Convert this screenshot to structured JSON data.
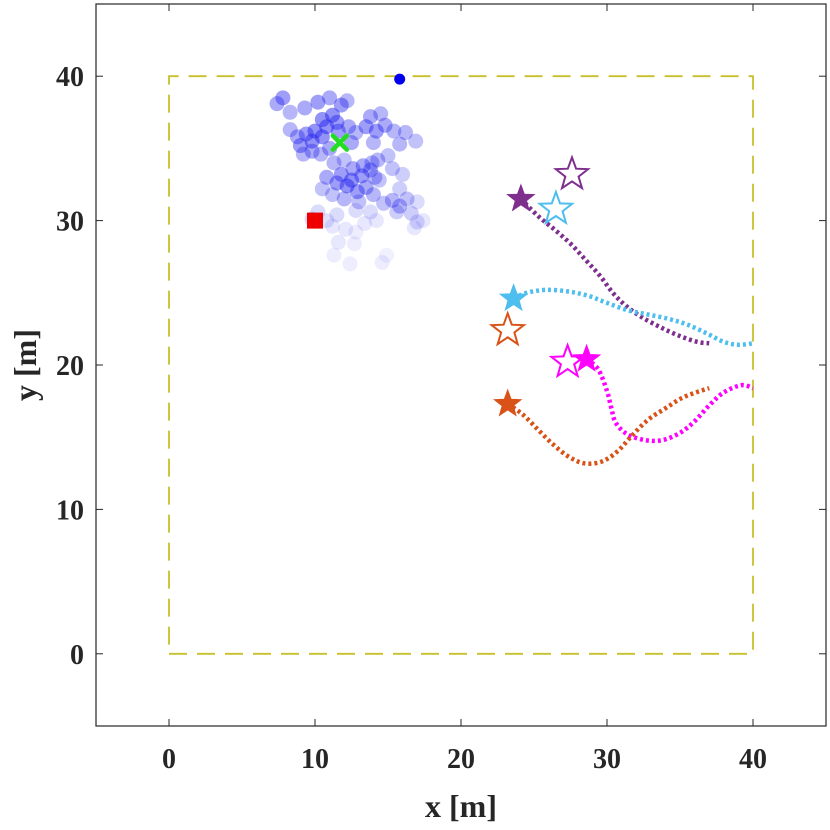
{
  "chart_data": {
    "type": "scatter",
    "xlabel": "x [m]",
    "ylabel": "y [m]",
    "xlim": [
      -5,
      45
    ],
    "ylim": [
      -5,
      45
    ],
    "xticks": [
      0,
      10,
      20,
      30,
      40
    ],
    "yticks": [
      0,
      10,
      20,
      30,
      40
    ],
    "xtick_labels": [
      "0",
      "10",
      "20",
      "30",
      "40"
    ],
    "ytick_labels": [
      "0",
      "10",
      "20",
      "30",
      "40"
    ],
    "grid": false,
    "boundary": {
      "x": [
        0,
        40,
        40,
        0,
        0
      ],
      "y": [
        0,
        0,
        40,
        40,
        0
      ],
      "color": "#c8c02a",
      "style": "dashed"
    },
    "particles": {
      "color": "#2222ee",
      "points": [
        [
          7.8,
          38.5,
          0.8
        ],
        [
          7.4,
          38.1,
          0.7
        ],
        [
          8.3,
          37.5,
          0.6
        ],
        [
          9.3,
          37.8,
          0.7
        ],
        [
          10.2,
          38.2,
          0.8
        ],
        [
          11.0,
          38.5,
          0.7
        ],
        [
          11.8,
          38.0,
          0.8
        ],
        [
          12.2,
          38.3,
          0.6
        ],
        [
          10.5,
          37.0,
          0.9
        ],
        [
          11.2,
          37.3,
          0.9
        ],
        [
          10.8,
          36.5,
          0.9
        ],
        [
          11.5,
          36.8,
          0.8
        ],
        [
          10.0,
          36.2,
          0.9
        ],
        [
          9.4,
          36.0,
          0.8
        ],
        [
          8.8,
          35.8,
          0.7
        ],
        [
          8.3,
          36.3,
          0.6
        ],
        [
          9.0,
          35.2,
          0.8
        ],
        [
          9.8,
          35.5,
          0.9
        ],
        [
          10.5,
          35.8,
          0.9
        ],
        [
          11.6,
          36.2,
          0.8
        ],
        [
          12.3,
          36.5,
          0.7
        ],
        [
          12.8,
          36.1,
          0.6
        ],
        [
          12.5,
          35.4,
          0.7
        ],
        [
          9.2,
          34.6,
          0.6
        ],
        [
          9.8,
          34.8,
          0.7
        ],
        [
          10.4,
          34.6,
          0.6
        ],
        [
          11.0,
          35.0,
          0.7
        ],
        [
          13.8,
          37.2,
          0.7
        ],
        [
          14.5,
          37.4,
          0.6
        ],
        [
          13.5,
          36.5,
          0.8
        ],
        [
          14.2,
          36.2,
          0.8
        ],
        [
          14.8,
          36.6,
          0.7
        ],
        [
          15.4,
          36.2,
          0.6
        ],
        [
          16.2,
          36.1,
          0.6
        ],
        [
          15.8,
          35.3,
          0.6
        ],
        [
          16.9,
          35.5,
          0.5
        ],
        [
          14.0,
          35.4,
          0.6
        ],
        [
          12.0,
          34.2,
          0.5
        ],
        [
          11.3,
          34.0,
          0.6
        ],
        [
          12.6,
          33.6,
          0.7
        ],
        [
          13.3,
          33.8,
          0.7
        ],
        [
          13.9,
          34.0,
          0.6
        ],
        [
          11.8,
          33.2,
          0.8
        ],
        [
          12.5,
          32.8,
          0.9
        ],
        [
          13.2,
          33.1,
          0.8
        ],
        [
          13.8,
          33.5,
          0.7
        ],
        [
          14.3,
          34.2,
          0.6
        ],
        [
          15.0,
          34.5,
          0.5
        ],
        [
          10.8,
          33.0,
          0.7
        ],
        [
          11.5,
          32.6,
          0.8
        ],
        [
          12.2,
          32.4,
          0.9
        ],
        [
          12.9,
          32.0,
          0.8
        ],
        [
          13.5,
          32.3,
          0.7
        ],
        [
          14.0,
          31.8,
          0.6
        ],
        [
          12.0,
          31.5,
          0.6
        ],
        [
          11.2,
          31.8,
          0.5
        ],
        [
          10.5,
          32.2,
          0.5
        ],
        [
          13.0,
          31.3,
          0.5
        ],
        [
          15.3,
          31.4,
          0.6
        ],
        [
          15.8,
          31.0,
          0.6
        ],
        [
          16.3,
          31.5,
          0.5
        ],
        [
          15.6,
          30.6,
          0.4
        ],
        [
          16.6,
          30.5,
          0.4
        ],
        [
          17.0,
          31.3,
          0.3
        ],
        [
          17.0,
          29.9,
          0.3
        ],
        [
          16.8,
          29.5,
          0.2
        ],
        [
          14.7,
          31.2,
          0.5
        ],
        [
          15.8,
          32.2,
          0.4
        ],
        [
          14.4,
          32.8,
          0.5
        ],
        [
          16.0,
          33.2,
          0.4
        ],
        [
          15.3,
          33.6,
          0.5
        ],
        [
          12.8,
          30.7,
          0.3
        ],
        [
          13.8,
          30.6,
          0.3
        ],
        [
          11.5,
          30.4,
          0.3
        ],
        [
          10.2,
          30.6,
          0.3
        ],
        [
          9.8,
          30.1,
          0.3
        ],
        [
          11.2,
          29.6,
          0.2
        ],
        [
          12.1,
          29.4,
          0.2
        ],
        [
          12.8,
          29.2,
          0.15
        ],
        [
          11.6,
          28.5,
          0.2
        ],
        [
          12.7,
          28.4,
          0.15
        ],
        [
          11.3,
          27.6,
          0.15
        ],
        [
          12.4,
          27.0,
          0.15
        ],
        [
          14.6,
          27.1,
          0.15
        ],
        [
          14.9,
          27.6,
          0.12
        ],
        [
          10.8,
          30.0,
          0.25
        ],
        [
          13.4,
          29.8,
          0.2
        ],
        [
          14.2,
          30.0,
          0.2
        ],
        [
          17.4,
          30.0,
          0.2
        ],
        [
          14.1,
          33.0,
          0.6
        ]
      ]
    },
    "markers": {
      "true_source": {
        "x": 10.0,
        "y": 30.0,
        "color": "#ee0000",
        "shape": "square"
      },
      "estimate": {
        "x": 11.7,
        "y": 35.4,
        "color": "#22dd22",
        "shape": "x"
      },
      "blue_dot": {
        "x": 15.8,
        "y": 39.8,
        "color": "#0000ee",
        "shape": "circle"
      }
    },
    "agents": [
      {
        "color": "#7e2f8e",
        "path": [
          [
            24.1,
            31.5
          ],
          [
            25.3,
            30.3
          ],
          [
            26.5,
            29.3
          ],
          [
            27.6,
            28.3
          ],
          [
            28.6,
            27.2
          ],
          [
            29.5,
            26.2
          ],
          [
            30.4,
            25.0
          ],
          [
            31.3,
            24.1
          ],
          [
            32.4,
            23.3
          ],
          [
            33.7,
            22.6
          ],
          [
            35.0,
            22.0
          ],
          [
            36.2,
            21.6
          ],
          [
            37.0,
            21.5
          ]
        ],
        "start": [
          24.1,
          31.5
        ],
        "goal": [
          27.6,
          33.2
        ]
      },
      {
        "color": "#4dbeee",
        "path": [
          [
            23.6,
            24.6
          ],
          [
            24.5,
            25.0
          ],
          [
            25.8,
            25.2
          ],
          [
            27.3,
            25.1
          ],
          [
            28.7,
            24.8
          ],
          [
            30.0,
            24.3
          ],
          [
            31.4,
            23.8
          ],
          [
            32.8,
            23.5
          ],
          [
            34.2,
            23.2
          ],
          [
            35.5,
            22.8
          ],
          [
            36.8,
            22.2
          ],
          [
            38.0,
            21.6
          ],
          [
            39.0,
            21.4
          ],
          [
            40.0,
            21.5
          ]
        ],
        "start": [
          23.6,
          24.6
        ],
        "goal": [
          26.5,
          30.8
        ]
      },
      {
        "color": "#ff00ff",
        "path": [
          [
            28.6,
            20.4
          ],
          [
            29.4,
            19.7
          ],
          [
            30.0,
            18.2
          ],
          [
            30.3,
            17.0
          ],
          [
            30.6,
            16.0
          ],
          [
            31.4,
            15.2
          ],
          [
            32.6,
            14.8
          ],
          [
            33.8,
            14.8
          ],
          [
            35.0,
            15.3
          ],
          [
            36.0,
            16.1
          ],
          [
            37.0,
            17.2
          ],
          [
            38.0,
            18.1
          ],
          [
            39.2,
            18.6
          ],
          [
            40.0,
            18.4
          ]
        ],
        "start": [
          28.6,
          20.4
        ],
        "goal": [
          27.3,
          20.2
        ]
      },
      {
        "color": "#d95319",
        "path": [
          [
            23.2,
            17.3
          ],
          [
            24.2,
            16.6
          ],
          [
            25.2,
            15.6
          ],
          [
            26.2,
            14.6
          ],
          [
            27.3,
            13.7
          ],
          [
            28.4,
            13.2
          ],
          [
            29.6,
            13.3
          ],
          [
            30.7,
            14.0
          ],
          [
            31.7,
            15.1
          ],
          [
            32.8,
            16.2
          ],
          [
            34.0,
            17.0
          ],
          [
            35.3,
            17.8
          ],
          [
            37.0,
            18.4
          ]
        ],
        "start": [
          23.2,
          17.3
        ],
        "goal": [
          23.2,
          22.4
        ]
      }
    ]
  }
}
